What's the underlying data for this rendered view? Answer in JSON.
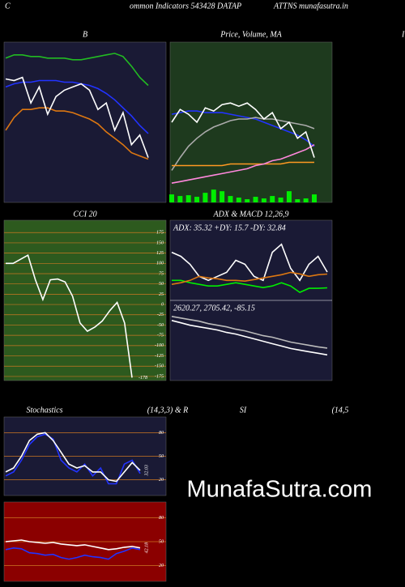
{
  "header": [
    "C",
    "ommon  Indicators 543428  DATAP",
    "ATTNS munafasutra.in",
    "I"
  ],
  "watermark": "MunafaSutra.com",
  "chart_data": [
    {
      "type": "line",
      "title": [
        "B"
      ],
      "background": "#1a1a35",
      "ylim": [
        0,
        100
      ],
      "series": [
        {
          "color": "#22bb22",
          "values": [
            90,
            92,
            92,
            91,
            91,
            90,
            90,
            90,
            89,
            89,
            90,
            91,
            92,
            93,
            91,
            85,
            78,
            73
          ]
        },
        {
          "color": "#2233ff",
          "values": [
            72,
            74,
            75,
            75,
            76,
            76,
            76,
            75,
            75,
            74,
            73,
            71,
            68,
            64,
            59,
            54,
            48,
            43
          ]
        },
        {
          "color": "#dd7711",
          "values": [
            45,
            53,
            58,
            58,
            59,
            59,
            57,
            57,
            56,
            54,
            52,
            49,
            44,
            40,
            36,
            31,
            29,
            27
          ]
        },
        {
          "color": "#ffffff",
          "values": [
            77,
            76,
            78,
            62,
            72,
            55,
            66,
            70,
            72,
            74,
            70,
            58,
            62,
            45,
            56,
            36,
            42,
            28
          ]
        }
      ]
    },
    {
      "type": "line",
      "title": [
        "Price, Volume, MA"
      ],
      "background": "#1e3a1e",
      "ylim": [
        0,
        100
      ],
      "y2lim": [
        0,
        1000
      ],
      "series": [
        {
          "color": "#2233ff",
          "values": [
            55,
            56,
            57,
            57,
            56,
            56,
            56,
            55,
            54,
            53,
            52,
            50,
            48,
            46,
            44,
            42,
            39,
            35
          ]
        },
        {
          "color": "#aaaaaa",
          "values": [
            20,
            28,
            35,
            40,
            44,
            47,
            49,
            51,
            52,
            52,
            53,
            52,
            52,
            51,
            50,
            49,
            48,
            46
          ]
        },
        {
          "color": "#ff9922",
          "values": [
            23,
            23,
            23,
            23,
            23,
            23,
            23,
            24,
            24,
            24,
            24,
            24,
            24,
            24,
            25,
            25,
            25,
            25
          ]
        },
        {
          "color": "#ff88dd",
          "values": [
            12,
            13,
            14,
            15,
            16,
            17,
            18,
            19,
            20,
            21,
            23,
            24,
            26,
            27,
            29,
            31,
            33,
            36
          ]
        },
        {
          "color": "#ffffff",
          "values": [
            50,
            58,
            55,
            50,
            59,
            57,
            61,
            62,
            60,
            62,
            58,
            52,
            56,
            46,
            50,
            40,
            44,
            28
          ]
        },
        {
          "type": "bar",
          "axis": "y2",
          "color": "#00ee00",
          "values": [
            50,
            40,
            45,
            35,
            60,
            80,
            70,
            40,
            30,
            20,
            35,
            25,
            40,
            30,
            70,
            20,
            25,
            50
          ]
        }
      ]
    },
    {
      "type": "line",
      "title": [
        "CCI 20"
      ],
      "background": "#2d5a1e",
      "ylim": [
        -185,
        205
      ],
      "grid": true,
      "yticks": [
        175,
        150,
        125,
        100,
        75,
        50,
        25,
        0,
        -25,
        -50,
        -75,
        -100,
        -125,
        -150,
        -175
      ],
      "series": [
        {
          "color": "#ffffff",
          "values": [
            100,
            100,
            110,
            120,
            60,
            12,
            60,
            62,
            55,
            20,
            -45,
            -65,
            -55,
            -40,
            -15,
            5,
            -45,
            -178
          ]
        }
      ]
    },
    {
      "type": "line",
      "title": [
        "ADX  & MACD 12,26,9"
      ],
      "background": "#1a1a35",
      "ylim": [
        0,
        100
      ],
      "y2lim": [
        2300,
        3300
      ],
      "annotations": [
        "ADX: 35.32  +DY: 15.7 -DY: 32.84",
        "2620.27,  2705.42,  -85.15"
      ],
      "series": [
        {
          "color": "#ffffff",
          "values": [
            60,
            55,
            45,
            30,
            25,
            30,
            35,
            50,
            45,
            30,
            25,
            60,
            70,
            40,
            25,
            45,
            55,
            35.32
          ]
        },
        {
          "color": "#00ee00",
          "values": [
            25,
            25,
            22,
            20,
            18,
            18,
            20,
            22,
            20,
            18,
            16,
            18,
            22,
            18,
            10,
            15,
            15,
            15.7
          ]
        },
        {
          "color": "#dd7711",
          "values": [
            20,
            22,
            25,
            30,
            28,
            27,
            25,
            25,
            24,
            26,
            28,
            30,
            32,
            35,
            33,
            30,
            32,
            32.84
          ]
        },
        {
          "color": "#ffffff",
          "axis": "y2",
          "values": [
            3050,
            3020,
            2990,
            2970,
            2950,
            2930,
            2900,
            2880,
            2850,
            2820,
            2790,
            2760,
            2730,
            2700,
            2680,
            2660,
            2640,
            2620.27
          ]
        },
        {
          "color": "#bbbbbb",
          "axis": "y2",
          "values": [
            3100,
            3080,
            3060,
            3040,
            3010,
            2990,
            2970,
            2940,
            2920,
            2890,
            2860,
            2840,
            2810,
            2780,
            2760,
            2740,
            2720,
            2705.42
          ]
        }
      ]
    },
    {
      "type": "line",
      "title": [
        "Stochastics",
        "(14,3,3) & R",
        "SI",
        "(14,5"
      ],
      "background": "#1a1a35",
      "ylim": [
        0,
        100
      ],
      "grid": true,
      "yticks": [
        80,
        50,
        20
      ],
      "series": [
        {
          "color": "#2233ff",
          "values": [
            25,
            30,
            45,
            65,
            75,
            78,
            72,
            45,
            35,
            30,
            40,
            25,
            35,
            15,
            15,
            40,
            45,
            28
          ]
        },
        {
          "color": "#ffffff",
          "values": [
            30,
            35,
            50,
            70,
            78,
            80,
            70,
            55,
            40,
            35,
            38,
            30,
            30,
            20,
            18,
            30,
            42,
            32.03
          ]
        }
      ]
    },
    {
      "type": "line",
      "title": [],
      "background": "#8b0000",
      "ylim": [
        0,
        100
      ],
      "grid": true,
      "yticks": [
        80,
        50,
        20
      ],
      "series": [
        {
          "color": "#2233ff",
          "values": [
            40,
            42,
            41,
            36,
            35,
            33,
            34,
            30,
            28,
            30,
            33,
            31,
            30,
            28,
            35,
            38,
            42,
            40
          ]
        },
        {
          "color": "#ffffff",
          "values": [
            50,
            51,
            52,
            50,
            49,
            48,
            49,
            47,
            46,
            45,
            46,
            44,
            42,
            40,
            41,
            43,
            44,
            42.18
          ]
        }
      ]
    }
  ]
}
